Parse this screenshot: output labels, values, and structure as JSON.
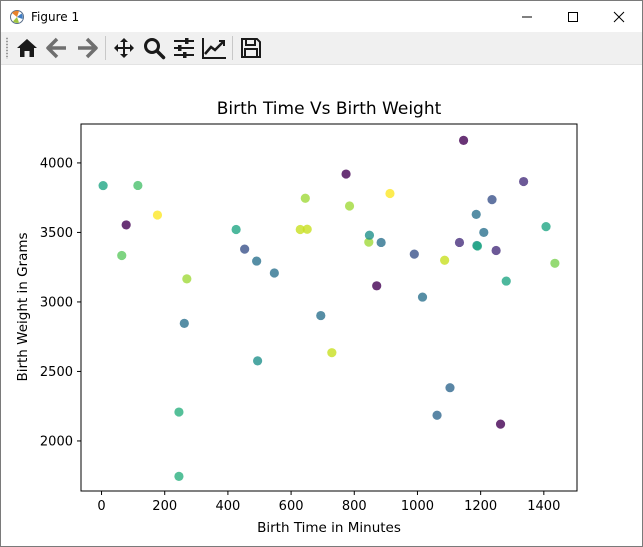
{
  "window": {
    "title": "Figure 1",
    "controls": [
      "minimize-icon",
      "maximize-icon",
      "close-icon"
    ]
  },
  "toolbar": {
    "buttons": [
      {
        "name": "home",
        "icon": "home-icon"
      },
      {
        "name": "back",
        "icon": "arrow-left-icon"
      },
      {
        "name": "forward",
        "icon": "arrow-right-icon"
      },
      {
        "name": "pan",
        "icon": "move-arrows-icon"
      },
      {
        "name": "zoom",
        "icon": "magnifier-icon"
      },
      {
        "name": "configure-subplots",
        "icon": "sliders-icon"
      },
      {
        "name": "edit-axis",
        "icon": "line-chart-icon"
      },
      {
        "name": "save",
        "icon": "floppy-disk-icon"
      }
    ]
  },
  "chart_data": {
    "type": "scatter",
    "title": "Birth Time Vs Birth Weight",
    "xlabel": "Birth Time in Minutes",
    "ylabel": "Birth Weight in Grams",
    "xlim": [
      -65,
      1505
    ],
    "ylim": [
      1640,
      4280
    ],
    "xticks": [
      0,
      200,
      400,
      600,
      800,
      1000,
      1200,
      1400
    ],
    "yticks": [
      2000,
      2500,
      3000,
      3500,
      4000
    ],
    "grid": false,
    "legend": "none",
    "point_alpha": 0.8,
    "points": [
      {
        "x": 5,
        "y": 3837,
        "color": "#21a685"
      },
      {
        "x": 64,
        "y": 3334,
        "color": "#5ec962"
      },
      {
        "x": 78,
        "y": 3554,
        "color": "#440154"
      },
      {
        "x": 115,
        "y": 3838,
        "color": "#4ac16d"
      },
      {
        "x": 177,
        "y": 3625,
        "color": "#fde725"
      },
      {
        "x": 245,
        "y": 2208,
        "color": "#2ab07f"
      },
      {
        "x": 245,
        "y": 1745,
        "color": "#2ab07f"
      },
      {
        "x": 262,
        "y": 2846,
        "color": "#2c728e"
      },
      {
        "x": 270,
        "y": 3166,
        "color": "#a0da39"
      },
      {
        "x": 426,
        "y": 3521,
        "color": "#21a685"
      },
      {
        "x": 453,
        "y": 3380,
        "color": "#3b528b"
      },
      {
        "x": 491,
        "y": 3294,
        "color": "#2c728e"
      },
      {
        "x": 494,
        "y": 2576,
        "color": "#21918c"
      },
      {
        "x": 547,
        "y": 3208,
        "color": "#2c728e"
      },
      {
        "x": 629,
        "y": 3521,
        "color": "#c8e020"
      },
      {
        "x": 645,
        "y": 3746,
        "color": "#a0da39"
      },
      {
        "x": 651,
        "y": 3523,
        "color": "#c8e020"
      },
      {
        "x": 694,
        "y": 2902,
        "color": "#2c728e"
      },
      {
        "x": 729,
        "y": 2635,
        "color": "#c8e020"
      },
      {
        "x": 774,
        "y": 3920,
        "color": "#440154"
      },
      {
        "x": 785,
        "y": 3690,
        "color": "#a0da39"
      },
      {
        "x": 846,
        "y": 3430,
        "color": "#a0da39"
      },
      {
        "x": 848,
        "y": 3480,
        "color": "#21918c"
      },
      {
        "x": 871,
        "y": 3116,
        "color": "#440154"
      },
      {
        "x": 885,
        "y": 3428,
        "color": "#2c728e"
      },
      {
        "x": 913,
        "y": 3780,
        "color": "#fde725"
      },
      {
        "x": 990,
        "y": 3344,
        "color": "#3b528b"
      },
      {
        "x": 1016,
        "y": 3035,
        "color": "#2c728e"
      },
      {
        "x": 1062,
        "y": 2185,
        "color": "#31688e"
      },
      {
        "x": 1086,
        "y": 3300,
        "color": "#c8e020"
      },
      {
        "x": 1103,
        "y": 2383,
        "color": "#31688e"
      },
      {
        "x": 1133,
        "y": 3428,
        "color": "#472f7d"
      },
      {
        "x": 1146,
        "y": 4162,
        "color": "#440154"
      },
      {
        "x": 1186,
        "y": 3630,
        "color": "#2c728e"
      },
      {
        "x": 1188,
        "y": 3406,
        "color": "#21918c"
      },
      {
        "x": 1190,
        "y": 3402,
        "color": "#22a884"
      },
      {
        "x": 1210,
        "y": 3500,
        "color": "#2c728e"
      },
      {
        "x": 1236,
        "y": 3736,
        "color": "#3b528b"
      },
      {
        "x": 1249,
        "y": 3370,
        "color": "#472f7d"
      },
      {
        "x": 1263,
        "y": 2121,
        "color": "#440154"
      },
      {
        "x": 1281,
        "y": 3150,
        "color": "#21a685"
      },
      {
        "x": 1336,
        "y": 3866,
        "color": "#472f7d"
      },
      {
        "x": 1407,
        "y": 3542,
        "color": "#21a685"
      },
      {
        "x": 1435,
        "y": 3278,
        "color": "#7ad151"
      }
    ]
  }
}
